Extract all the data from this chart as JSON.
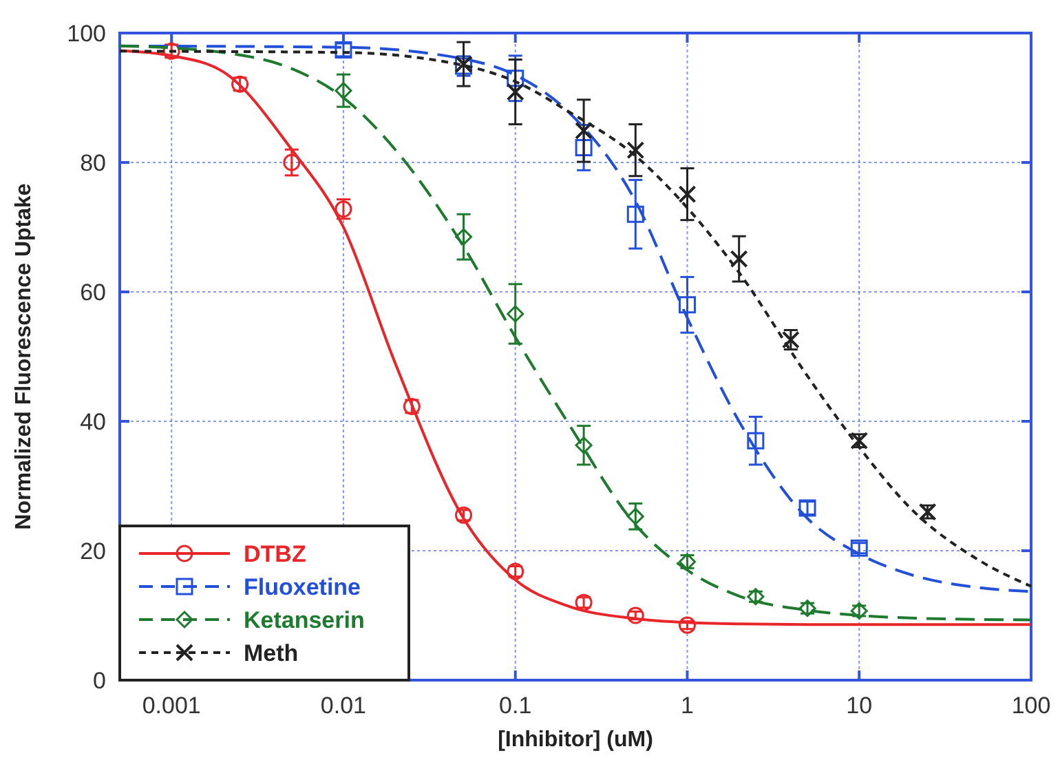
{
  "chart_data": {
    "type": "scatter",
    "xlabel": "[Inhibitor] (uM)",
    "ylabel": "Normalized Fluorescence Uptake",
    "log": "x",
    "xlim": [
      0.0005,
      100
    ],
    "xticks": [
      0.001,
      0.01,
      0.1,
      1,
      10,
      100
    ],
    "ylim": [
      0,
      100
    ],
    "yticks": [
      0,
      20,
      40,
      60,
      80,
      100
    ],
    "grid": true,
    "legend": "bottom left",
    "series": [
      {
        "name": "DTBZ",
        "marker": "circle",
        "color": "#e8262a",
        "x": [
          0.001,
          0.0025,
          0.005,
          0.01,
          0.025,
          0.05,
          0.1,
          0.25,
          0.5,
          1
        ],
        "values": [
          97.2,
          92.1,
          80,
          72.8,
          42.3,
          25.5,
          16.8,
          12,
          10,
          8.5
        ],
        "errors": [
          1,
          1,
          2,
          1.5,
          1,
          0.8,
          0.8,
          0.8,
          0.6,
          0.6
        ]
      },
      {
        "type": "line",
        "line_style": "solid",
        "color": "#e8262a",
        "x": [
          0.0005,
          0.001,
          0.002,
          0.005,
          0.01,
          0.02,
          0.05,
          0.1,
          0.2,
          0.5,
          1,
          2,
          5,
          10,
          100
        ],
        "values": [
          97.3,
          96.5,
          94,
          82,
          70,
          49,
          25,
          15.5,
          11.5,
          9.5,
          8.9,
          8.7,
          8.6,
          8.6,
          8.6
        ]
      },
      {
        "name": "Fluoxetine",
        "marker": "square",
        "color": "#2250d8",
        "x": [
          0.01,
          0.05,
          0.1,
          0.25,
          0.5,
          1,
          2.5,
          5,
          10
        ],
        "values": [
          97.4,
          94.9,
          93,
          82.3,
          72,
          58,
          37,
          26.6,
          20.4
        ],
        "errors": [
          1,
          1.5,
          3.5,
          3.5,
          5.3,
          4.3,
          3.7,
          1,
          0.8
        ]
      },
      {
        "type": "line",
        "line_style": "dashed",
        "color": "#2250d8",
        "x": [
          0.0005,
          0.01,
          0.05,
          0.1,
          0.2,
          0.5,
          1,
          2,
          5,
          10,
          20,
          50,
          100
        ],
        "values": [
          98,
          97.8,
          96,
          93.5,
          88,
          74,
          56,
          40,
          25,
          19.5,
          16.3,
          14.3,
          13.7
        ]
      },
      {
        "name": "Ketanserin",
        "marker": "diamond",
        "color": "#1e7a2e",
        "x": [
          0.01,
          0.05,
          0.1,
          0.25,
          0.5,
          1,
          2.5,
          5,
          10
        ],
        "values": [
          91.1,
          68.5,
          56.6,
          36.3,
          25.3,
          18.3,
          12.9,
          11.1,
          10.7
        ],
        "errors": [
          2.5,
          3.5,
          4.6,
          3,
          2,
          1,
          0.8,
          0.8,
          0.8
        ]
      },
      {
        "type": "line",
        "line_style": "dashed",
        "color": "#1e7a2e",
        "x": [
          0.0005,
          0.001,
          0.002,
          0.005,
          0.01,
          0.02,
          0.05,
          0.1,
          0.2,
          0.5,
          1,
          2,
          5,
          10,
          20,
          100
        ],
        "values": [
          98,
          97.7,
          97,
          94.5,
          90,
          82,
          67,
          53,
          40,
          24,
          17,
          13,
          10.8,
          10,
          9.6,
          9.3
        ]
      },
      {
        "name": "Meth",
        "marker": "cross",
        "color": "#222222",
        "x": [
          0.05,
          0.1,
          0.25,
          0.5,
          1,
          2,
          4,
          10,
          25
        ],
        "values": [
          95.2,
          90.9,
          84.9,
          81.9,
          75.1,
          65.1,
          52.6,
          37,
          26
        ],
        "errors": [
          3.4,
          5,
          4.8,
          4,
          4,
          3.5,
          1.5,
          1,
          1
        ]
      },
      {
        "type": "line",
        "line_style": "dotted",
        "color": "#222222",
        "x": [
          0.0005,
          0.01,
          0.05,
          0.1,
          0.2,
          0.5,
          1,
          2,
          5,
          10,
          20,
          50,
          100
        ],
        "values": [
          97.2,
          97,
          95,
          92.5,
          88,
          81,
          73,
          63,
          47,
          36,
          26.5,
          18.5,
          14.5
        ]
      }
    ]
  }
}
